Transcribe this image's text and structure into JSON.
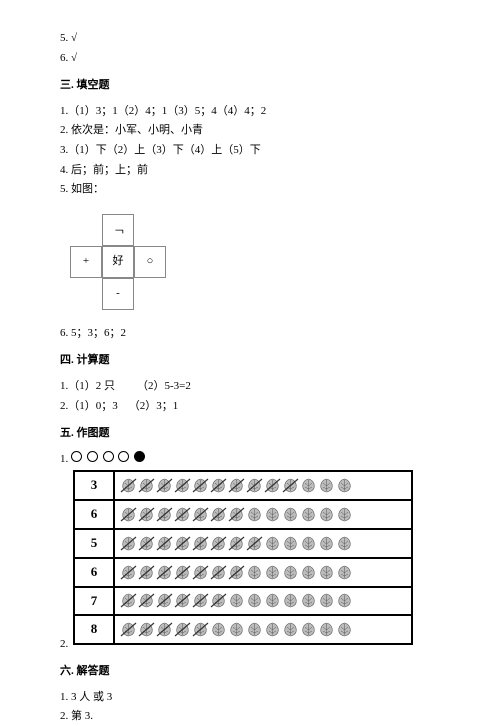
{
  "top": {
    "l1": "5. √",
    "l2": "6. √"
  },
  "sec3": {
    "title": "三. 填空题",
    "l1": "1.（1）3；1（2）4；1（3）5；4（4）4；2",
    "l2": "2. 依次是：小军、小明、小青",
    "l3": "3.（1）下（2）上（3）下（4）上（5）下",
    "l4": "4. 后；前；上；前",
    "l5": "5. 如图：",
    "l6": "6. 5；3；6；2"
  },
  "cross": {
    "top": "﹁",
    "left": "+",
    "mid": "好",
    "right": "○",
    "bottom": "-"
  },
  "sec4": {
    "title": "四. 计算题",
    "l1": "1.（1）2 只  （2）5-3=2",
    "l2": "2.（1）0；3 （2）3；1"
  },
  "sec5": {
    "title": "五. 作图题",
    "q1label": "1.",
    "q2label": "2.",
    "tableRows": [
      {
        "num": "3",
        "total": 13,
        "crossed": 10
      },
      {
        "num": "6",
        "total": 13,
        "crossed": 7
      },
      {
        "num": "5",
        "total": 13,
        "crossed": 8
      },
      {
        "num": "6",
        "total": 13,
        "crossed": 7
      },
      {
        "num": "7",
        "total": 13,
        "crossed": 6
      },
      {
        "num": "8",
        "total": 13,
        "crossed": 5
      }
    ]
  },
  "sec6": {
    "title": "六. 解答题",
    "l1": "1. 3 人 或 3",
    "l2": "2. 第 3."
  },
  "colors": {
    "text": "#000000",
    "bg": "#ffffff",
    "border": "#888888",
    "leafFill": "#bdbdbd",
    "leafStroke": "#555555"
  }
}
